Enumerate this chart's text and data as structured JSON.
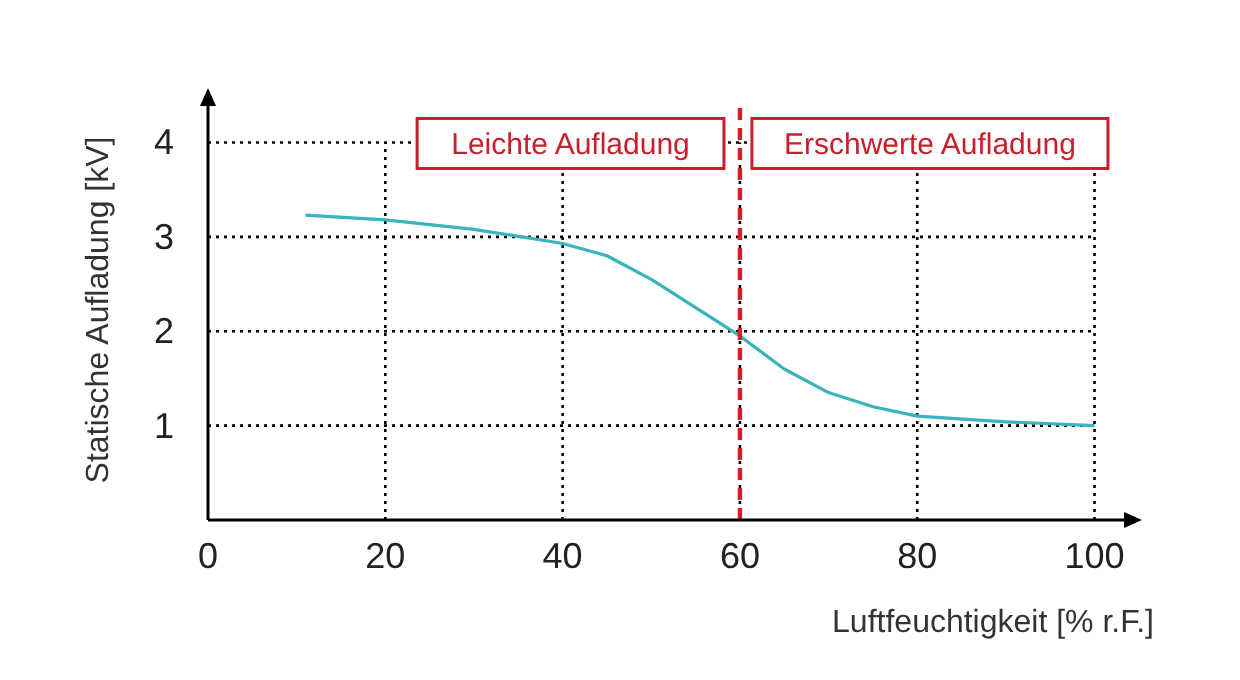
{
  "chart_data": {
    "type": "line",
    "xlabel": "Luftfeuchtigkeit [% r.F.]",
    "ylabel": "Statische Aufladung [kV]",
    "x": [
      11,
      20,
      30,
      40,
      45,
      50,
      55,
      60,
      65,
      70,
      75,
      80,
      90,
      100
    ],
    "series": [
      {
        "color": "#3ab3bd",
        "values": [
          3.23,
          3.18,
          3.08,
          2.93,
          2.8,
          2.55,
          2.25,
          1.95,
          1.6,
          1.35,
          1.2,
          1.1,
          1.04,
          1.0
        ]
      }
    ],
    "xlim": [
      0,
      104
    ],
    "ylim": [
      0,
      4.45
    ],
    "xticks": [
      0,
      20,
      40,
      60,
      80,
      100
    ],
    "yticks": [
      {
        "value": 0,
        "label": null
      },
      1,
      2,
      3,
      4
    ],
    "grid": true,
    "marker": "none",
    "line_style": "solid",
    "ref_lines": [
      {
        "axis": "x",
        "value": 60,
        "color": "#d42129",
        "line_style": "dashed"
      }
    ],
    "annotations": [
      "Leichte Aufladung",
      "Erschwerte Aufladung"
    ]
  }
}
